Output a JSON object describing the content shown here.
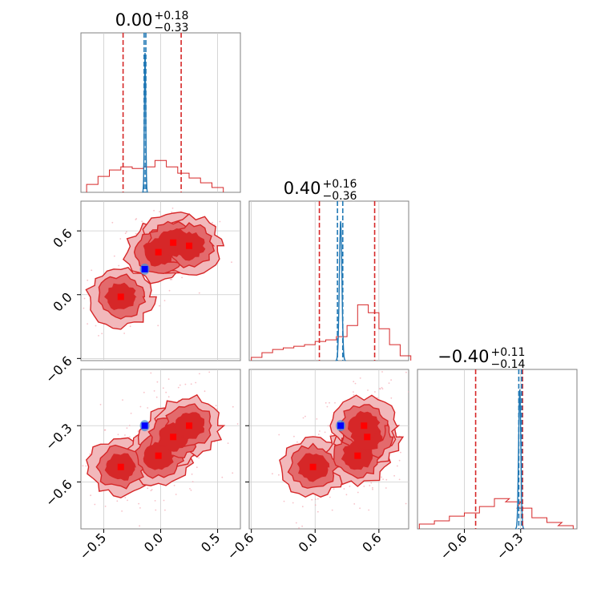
{
  "chart_data": {
    "type": "corner",
    "parameters": [
      {
        "id": "p1",
        "title": {
          "base": "0.00",
          "up": "+0.18",
          "down": "−0.33"
        },
        "range": [
          -0.7,
          0.7
        ],
        "ticks": [
          -0.5,
          0.0,
          0.5
        ],
        "tick_labels": [
          "−0.5",
          "0.0",
          "0.5"
        ]
      },
      {
        "id": "p2",
        "title": {
          "base": "0.40",
          "up": "+0.16",
          "down": "−0.36"
        },
        "range": [
          -0.62,
          0.88
        ],
        "ticks": [
          -0.6,
          0.0,
          0.6
        ],
        "tick_labels": [
          "−0.6",
          "0.0",
          "0.6"
        ]
      },
      {
        "id": "p3",
        "title": {
          "base": "−0.40",
          "up": "+0.11",
          "down": "−0.14"
        },
        "range": [
          -0.85,
          0.0
        ],
        "ticks": [
          -0.6,
          -0.3
        ],
        "tick_labels": [
          "−0.6",
          "−0.3"
        ]
      }
    ],
    "colors": {
      "red_posterior": "#d62728",
      "blue_posterior": "#1f77b4",
      "blue_marker": "#0000ff",
      "red_marker": "#ff0000",
      "grid": "#cccccc",
      "frame": "#808080"
    },
    "red_diagonal_lines": [
      [
        -0.33,
        0.18
      ],
      [
        0.04,
        0.56
      ],
      [
        -0.54,
        -0.29
      ]
    ],
    "blue_diagonal_lines": [
      [
        -0.145,
        -0.13
      ],
      [
        0.21,
        0.26
      ],
      [
        -0.31,
        -0.295
      ]
    ],
    "blue_truth": [
      -0.14,
      0.24,
      -0.3
    ],
    "red_markers": [
      [
        -0.35,
        -0.02,
        -0.52
      ],
      [
        -0.02,
        0.4,
        -0.46
      ],
      [
        0.11,
        0.49,
        -0.36
      ],
      [
        0.25,
        0.46,
        -0.3
      ]
    ],
    "red_marginals": [
      {
        "centers": [
          -0.6,
          -0.5,
          -0.4,
          -0.3,
          -0.2,
          -0.1,
          0.0,
          0.1,
          0.2,
          0.3,
          0.4,
          0.5
        ],
        "heights": [
          0.05,
          0.1,
          0.14,
          0.16,
          0.15,
          0.16,
          0.2,
          0.16,
          0.12,
          0.09,
          0.06,
          0.03
        ]
      },
      {
        "centers": [
          -0.55,
          -0.45,
          -0.35,
          -0.25,
          -0.15,
          -0.05,
          0.05,
          0.15,
          0.25,
          0.35,
          0.45,
          0.55,
          0.65,
          0.75,
          0.85
        ],
        "heights": [
          0.02,
          0.05,
          0.07,
          0.08,
          0.09,
          0.1,
          0.12,
          0.13,
          0.15,
          0.22,
          0.35,
          0.3,
          0.2,
          0.1,
          0.03
        ]
      },
      {
        "centers": [
          -0.8,
          -0.72,
          -0.64,
          -0.56,
          -0.48,
          -0.4,
          -0.34,
          -0.28,
          -0.2,
          -0.12,
          -0.06
        ],
        "heights": [
          0.03,
          0.05,
          0.08,
          0.1,
          0.14,
          0.19,
          0.17,
          0.13,
          0.07,
          0.04,
          0.02
        ]
      }
    ],
    "blue_marginals": [
      {
        "peak": -0.137,
        "width": 0.006
      },
      {
        "peak": 0.24,
        "width": 0.012
      },
      {
        "peak": -0.305,
        "width": 0.006
      }
    ]
  }
}
